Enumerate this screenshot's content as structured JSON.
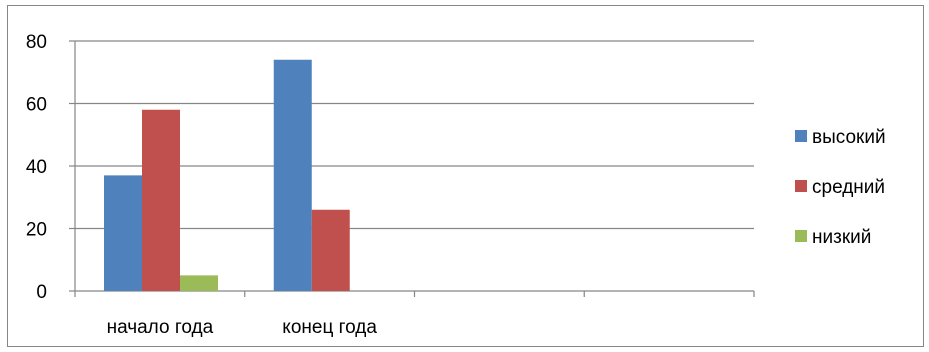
{
  "chart_data": {
    "type": "bar",
    "categories": [
      "начало года",
      "конец года",
      "",
      ""
    ],
    "series": [
      {
        "name": "высокий",
        "values": [
          37,
          74,
          null,
          null
        ],
        "color": "#4F81BD"
      },
      {
        "name": "средний",
        "values": [
          58,
          26,
          null,
          null
        ],
        "color": "#C0504D"
      },
      {
        "name": "низкий",
        "values": [
          5,
          0,
          null,
          null
        ],
        "color": "#9BBB59"
      }
    ],
    "title": "",
    "xlabel": "",
    "ylabel": "",
    "ylim": [
      0,
      80
    ],
    "yticks": [
      0,
      20,
      40,
      60,
      80
    ],
    "grid": true,
    "legend": "right"
  }
}
